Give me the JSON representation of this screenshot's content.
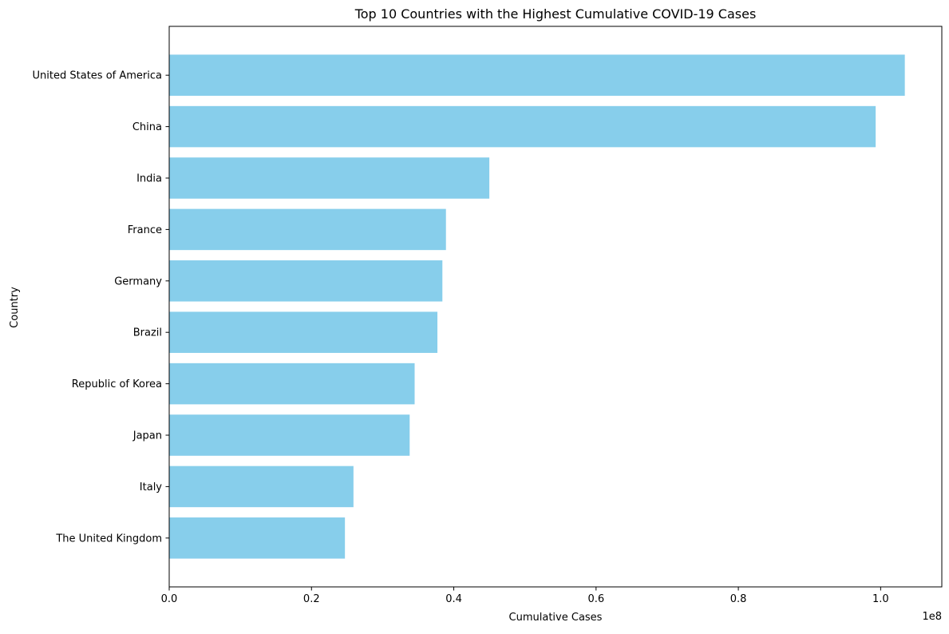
{
  "chart_data": {
    "type": "bar",
    "orientation": "horizontal",
    "title": "Top 10 Countries with the Highest Cumulative COVID-19 Cases",
    "xlabel": "Cumulative Cases",
    "ylabel": "Country",
    "x_offset_label": "1e8",
    "x_scale": 100000000,
    "xlim": [
      0,
      1.086
    ],
    "x_ticks": [
      0.0,
      0.2,
      0.4,
      0.6,
      0.8,
      1.0
    ],
    "x_tick_labels": [
      "0.0",
      "0.2",
      "0.4",
      "0.6",
      "0.8",
      "1.0"
    ],
    "categories": [
      "United States of America",
      "China",
      "India",
      "France",
      "Germany",
      "Brazil",
      "Republic of Korea",
      "Japan",
      "Italy",
      "The United Kingdom"
    ],
    "values": [
      103400000,
      99300000,
      45000000,
      38900000,
      38400000,
      37700000,
      34500000,
      33800000,
      25900000,
      24700000
    ],
    "bar_color": "#87CEEB",
    "grid": false,
    "legend": "none"
  }
}
